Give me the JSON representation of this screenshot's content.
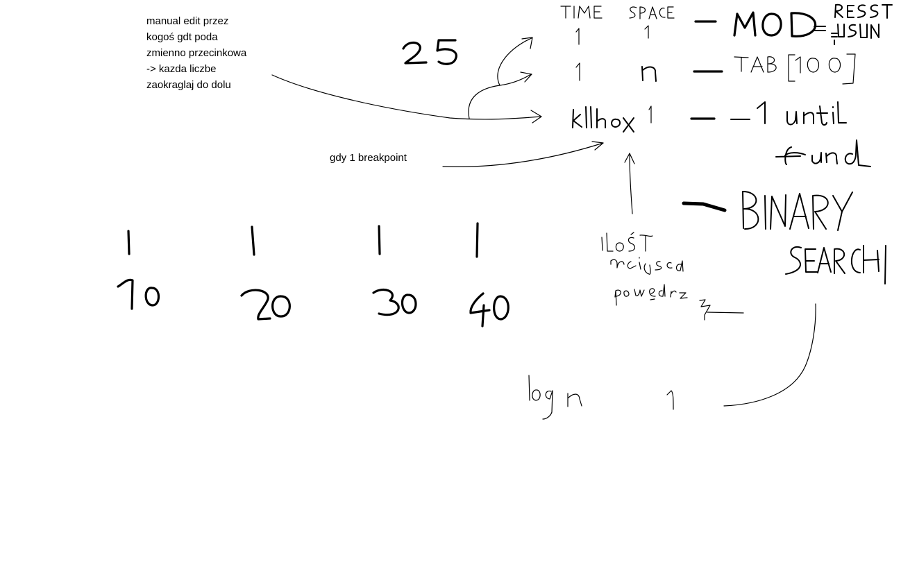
{
  "typed_notes": {
    "manual_edit": [
      "manual edit przez",
      "kogoś gdt poda",
      "zmienno przecinkowa",
      "-> kazda liczbe",
      "zaokraglaj do dolu"
    ],
    "breakpoint": "gdy 1 breakpoint"
  },
  "handwriting": {
    "header_time": "TIME",
    "header_space": "SPACE",
    "number_25": "25",
    "row1_time": "1",
    "row1_space": "1",
    "row1_label": "MOD",
    "row1_sub_top": "RESZT",
    "row1_sub_bottom": "USUN",
    "row2_time": "1",
    "row2_space": "n",
    "row2_label": "TAB[100]",
    "row3_time": "k/breakpoint",
    "row3_space": "1",
    "row3_label": "-1 until found",
    "row4_label": "BINARY SEARCH",
    "row4_time": "log n",
    "row4_space": "1",
    "places_note": "ilość miejsca po przecinku",
    "scale_values": [
      "10",
      "20",
      "30",
      "40"
    ]
  }
}
